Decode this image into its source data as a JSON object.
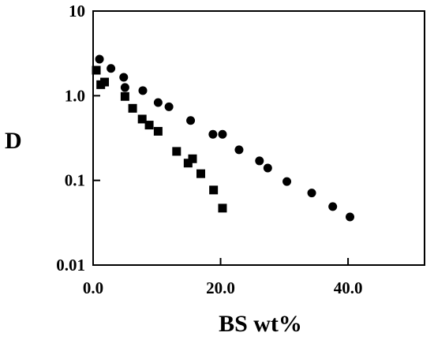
{
  "chart_data": {
    "type": "scatter",
    "xlabel": "BS wt%",
    "ylabel": "D",
    "xlim": [
      0,
      52
    ],
    "ylim": [
      0.01,
      10
    ],
    "y_scale": "log",
    "grid": false,
    "x_ticks": [
      {
        "value": 0,
        "label": "0.0"
      },
      {
        "value": 20,
        "label": "20.0"
      },
      {
        "value": 40,
        "label": "40.0"
      }
    ],
    "y_ticks": [
      {
        "value": 0.01,
        "label": "0.01"
      },
      {
        "value": 0.1,
        "label": "0.1"
      },
      {
        "value": 1,
        "label": "1.0"
      },
      {
        "value": 10,
        "label": "10"
      }
    ],
    "series": [
      {
        "marker": "circle",
        "color": "#000000",
        "points": [
          [
            1,
            2.7
          ],
          [
            2.8,
            2.1
          ],
          [
            4.8,
            1.65
          ],
          [
            5,
            1.25
          ],
          [
            7.8,
            1.15
          ],
          [
            10.2,
            0.83
          ],
          [
            11.9,
            0.74
          ],
          [
            15.3,
            0.51
          ],
          [
            18.8,
            0.35
          ],
          [
            20.3,
            0.35
          ],
          [
            22.9,
            0.23
          ],
          [
            26.1,
            0.17
          ],
          [
            27.4,
            0.14
          ],
          [
            30.4,
            0.097
          ],
          [
            34.3,
            0.071
          ],
          [
            37.6,
            0.049
          ],
          [
            40.3,
            0.037
          ]
        ]
      },
      {
        "marker": "square",
        "color": "#000000",
        "points": [
          [
            0.5,
            2.0
          ],
          [
            1.2,
            1.35
          ],
          [
            1.8,
            1.45
          ],
          [
            5,
            0.98
          ],
          [
            6.2,
            0.71
          ],
          [
            7.7,
            0.53
          ],
          [
            8.8,
            0.45
          ],
          [
            10.2,
            0.38
          ],
          [
            13.1,
            0.22
          ],
          [
            14.9,
            0.16
          ],
          [
            15.6,
            0.18
          ],
          [
            16.9,
            0.12
          ],
          [
            18.9,
            0.077
          ],
          [
            20.3,
            0.047
          ]
        ]
      }
    ]
  }
}
